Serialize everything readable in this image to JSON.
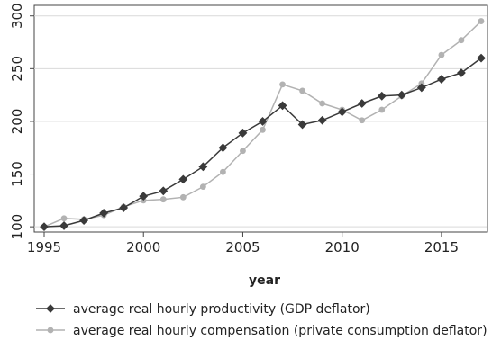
{
  "chart_data": {
    "type": "line",
    "title": "",
    "xlabel": "year",
    "ylabel": "",
    "xlim": [
      1995,
      2017
    ],
    "ylim": [
      95,
      310
    ],
    "x_ticks": [
      1995,
      2000,
      2005,
      2010,
      2015
    ],
    "y_ticks": [
      100,
      150,
      200,
      250,
      300
    ],
    "grid": "horizontal",
    "legend_position": "bottom",
    "x": [
      1995,
      1996,
      1997,
      1998,
      1999,
      2000,
      2001,
      2002,
      2003,
      2004,
      2005,
      2006,
      2007,
      2008,
      2009,
      2010,
      2011,
      2012,
      2013,
      2014,
      2015,
      2016,
      2017
    ],
    "series": [
      {
        "name": "average real hourly productivity (GDP deflator)",
        "color": "#3a3a3a",
        "marker": "diamond",
        "values": [
          100,
          101,
          106,
          113,
          118,
          129,
          134,
          145,
          157,
          175,
          189,
          200,
          215,
          197,
          201,
          209,
          217,
          224,
          225,
          232,
          240,
          246,
          260
        ]
      },
      {
        "name": "average real hourly compensation (private consumption deflator)",
        "color": "#b2b2b2",
        "marker": "circle",
        "values": [
          100,
          108,
          107,
          111,
          119,
          125,
          126,
          128,
          138,
          152,
          172,
          192,
          235,
          229,
          217,
          211,
          201,
          211,
          224,
          236,
          263,
          277,
          295
        ]
      }
    ]
  }
}
